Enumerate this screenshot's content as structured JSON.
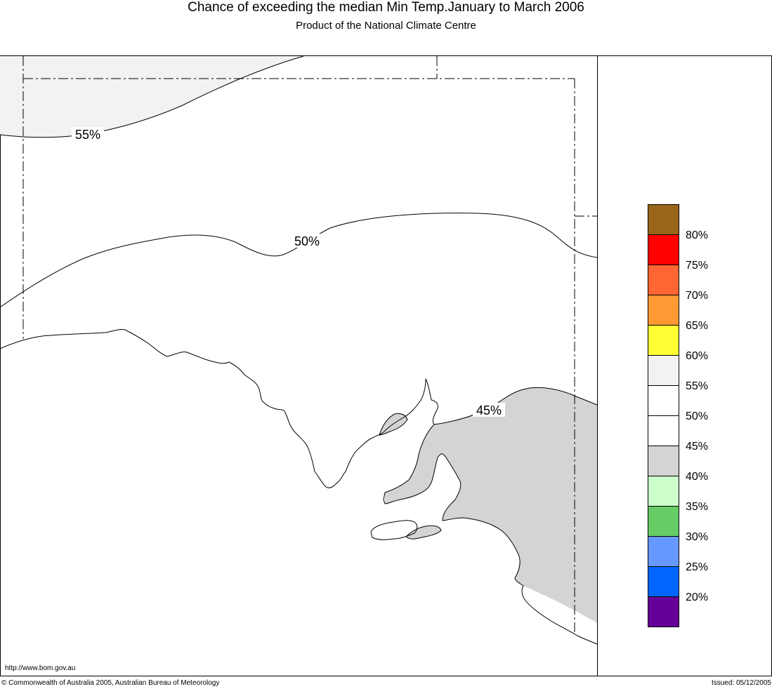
{
  "title": "Chance of exceeding the median Min Temp.January to March 2006",
  "subtitle": "Product of the National Climate Centre",
  "contour_labels": {
    "c55": "55%",
    "c50": "50%",
    "c45": "45%"
  },
  "legend": [
    {
      "color": "#996619",
      "label": ""
    },
    {
      "color": "#ff0000",
      "label": "80%"
    },
    {
      "color": "#ff6633",
      "label": "75%"
    },
    {
      "color": "#ff9933",
      "label": "70%"
    },
    {
      "color": "#ffff33",
      "label": "65%"
    },
    {
      "color": "#f2f2f2",
      "label": "60%"
    },
    {
      "color": "#ffffff",
      "label": "55%"
    },
    {
      "color": "#ffffff",
      "label": "50%"
    },
    {
      "color": "#d4d4d4",
      "label": "45%"
    },
    {
      "color": "#ccffcc",
      "label": "40%"
    },
    {
      "color": "#66cc66",
      "label": "35%"
    },
    {
      "color": "#6699ff",
      "label": "30%"
    },
    {
      "color": "#0066ff",
      "label": "25%"
    },
    {
      "color": "#660099",
      "label": "20%"
    }
  ],
  "fill_colors": {
    "above_55": "#f2f2f2",
    "below_45": "#d4d4d4"
  },
  "footer": {
    "url": "http://www.bom.gov.au",
    "copyright": "© Commonwealth of Australia 2005, Australian Bureau of Meteorology",
    "issued": "Issued: 05/12/2005"
  }
}
